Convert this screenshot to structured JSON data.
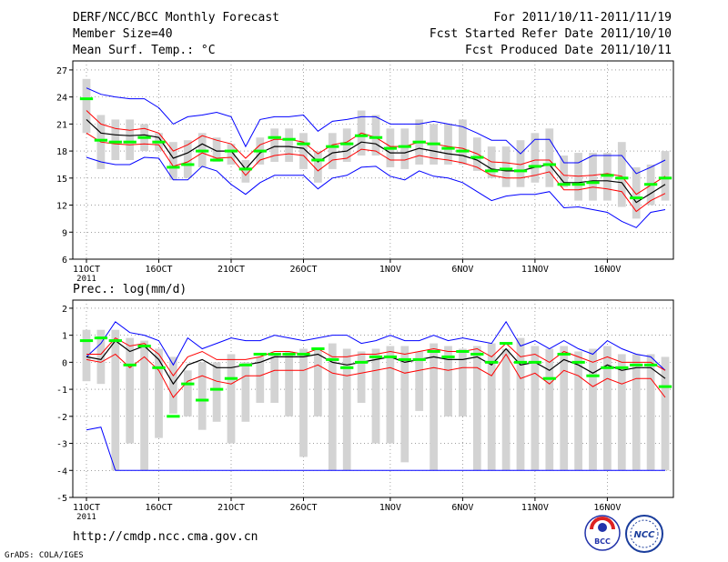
{
  "header": {
    "title": "DERF/NCC/BCC Monthly Forecast",
    "member_size": "Member Size=40",
    "variable": "Mean Surf. Temp.: °C",
    "period": "For 2011/10/11-2011/11/19",
    "started": "Fcst Started Refer Date 2011/10/10",
    "produced": "Fcst Produced Date 2011/10/11"
  },
  "footer": {
    "url": "http://cmdp.ncc.cma.gov.cn",
    "grads": "GrADS: COLA/IGES",
    "logo_bcc": "BCC",
    "logo_ncc": "NCC"
  },
  "colors": {
    "box": "#d3d3d3",
    "median": "#00ff00",
    "mean": "#000000",
    "spread": "#ff0000",
    "extreme": "#0000ff",
    "grid": "#666666"
  },
  "chart_data": [
    {
      "type": "box-plot-ensemble",
      "title": "",
      "ylabel": "Mean Surf. Temp.: °C",
      "ylim": [
        6,
        28
      ],
      "yticks": [
        6,
        9,
        12,
        15,
        18,
        21,
        24,
        27
      ],
      "days": 40,
      "xticks": [
        {
          "day": 0,
          "label": "11OCT",
          "sub": "2011"
        },
        {
          "day": 5,
          "label": "16OCT"
        },
        {
          "day": 10,
          "label": "21OCT"
        },
        {
          "day": 15,
          "label": "26OCT"
        },
        {
          "day": 21,
          "label": "1NOV"
        },
        {
          "day": 26,
          "label": "6NOV"
        },
        {
          "day": 31,
          "label": "11NOV"
        },
        {
          "day": 36,
          "label": "16NOV"
        }
      ],
      "box_low": [
        20.0,
        16.0,
        17.0,
        17.0,
        18.0,
        18.0,
        14.8,
        15.0,
        16.2,
        16.8,
        16.5,
        14.5,
        16.5,
        16.8,
        16.8,
        16.0,
        14.5,
        16.0,
        16.8,
        17.5,
        17.5,
        16.2,
        16.0,
        16.5,
        16.5,
        16.5,
        16.5,
        15.8,
        15.0,
        14.0,
        14.0,
        14.5,
        14.0,
        14.0,
        12.5,
        12.5,
        12.5,
        11.8,
        10.5,
        12.0,
        12.5
      ],
      "box_high": [
        26.0,
        22.0,
        21.5,
        21.5,
        21.0,
        20.0,
        19.0,
        19.2,
        20.0,
        19.5,
        18.8,
        17.0,
        19.5,
        20.5,
        20.5,
        20.0,
        18.0,
        20.0,
        20.5,
        22.5,
        22.0,
        20.5,
        20.5,
        21.5,
        21.0,
        21.0,
        21.5,
        19.5,
        18.5,
        18.5,
        19.2,
        20.0,
        20.5,
        17.5,
        17.8,
        17.8,
        17.8,
        19.0,
        16.2,
        16.5,
        18.0
      ],
      "median": [
        23.8,
        19.2,
        19.0,
        19.0,
        19.5,
        19.0,
        16.2,
        16.5,
        18.0,
        17.0,
        18.0,
        16.0,
        18.0,
        19.5,
        19.3,
        18.8,
        17.0,
        18.5,
        18.8,
        19.7,
        19.5,
        18.3,
        18.5,
        19.0,
        18.8,
        18.3,
        18.0,
        17.3,
        15.8,
        16.0,
        15.8,
        16.3,
        16.5,
        14.3,
        14.3,
        14.5,
        15.3,
        15.0,
        12.8,
        14.3,
        15.0
      ],
      "mean": [
        21.5,
        20.0,
        19.8,
        19.7,
        19.8,
        19.5,
        17.2,
        17.8,
        18.8,
        18.0,
        18.0,
        16.0,
        17.8,
        18.5,
        18.5,
        18.3,
        16.8,
        17.8,
        18.0,
        19.0,
        18.8,
        17.8,
        17.8,
        18.3,
        18.0,
        17.7,
        17.5,
        17.0,
        16.0,
        15.8,
        15.8,
        16.2,
        16.5,
        14.5,
        14.5,
        14.7,
        14.7,
        14.5,
        12.3,
        13.3,
        14.3
      ],
      "spread_upper": [
        22.5,
        21.0,
        20.5,
        20.3,
        20.5,
        20.0,
        18.0,
        18.7,
        19.7,
        19.2,
        18.8,
        17.2,
        18.7,
        19.3,
        19.3,
        19.0,
        17.7,
        18.7,
        19.0,
        20.0,
        19.5,
        18.5,
        18.5,
        19.0,
        18.8,
        18.5,
        18.3,
        17.7,
        16.8,
        16.7,
        16.5,
        17.0,
        17.0,
        15.3,
        15.2,
        15.3,
        15.5,
        15.2,
        13.2,
        14.2,
        15.2
      ],
      "spread_lower": [
        20.0,
        19.0,
        18.8,
        18.7,
        18.8,
        18.7,
        16.3,
        16.8,
        17.8,
        17.2,
        17.3,
        15.3,
        17.0,
        17.5,
        17.7,
        17.5,
        15.8,
        17.0,
        17.2,
        18.2,
        18.0,
        17.0,
        17.0,
        17.5,
        17.2,
        17.0,
        16.7,
        16.2,
        15.3,
        15.0,
        15.0,
        15.3,
        15.7,
        13.7,
        13.7,
        14.0,
        13.8,
        13.5,
        11.3,
        12.5,
        13.3
      ],
      "max": [
        25.0,
        24.3,
        24.0,
        23.8,
        23.8,
        22.8,
        21.0,
        21.8,
        22.0,
        22.3,
        21.8,
        18.5,
        21.5,
        21.8,
        21.8,
        22.0,
        20.2,
        21.3,
        21.5,
        21.8,
        21.8,
        21.0,
        21.0,
        21.0,
        21.3,
        21.0,
        20.7,
        20.0,
        19.2,
        19.2,
        17.7,
        19.3,
        19.3,
        16.7,
        16.7,
        17.5,
        17.5,
        17.5,
        15.5,
        16.2,
        17.0
      ],
      "min": [
        17.3,
        16.8,
        16.5,
        16.5,
        17.3,
        17.2,
        14.8,
        14.8,
        16.3,
        15.8,
        14.3,
        13.2,
        14.5,
        15.3,
        15.3,
        15.3,
        13.8,
        15.0,
        15.3,
        16.2,
        16.3,
        15.2,
        14.8,
        15.8,
        15.2,
        15.0,
        14.5,
        13.5,
        12.5,
        13.0,
        13.2,
        13.2,
        13.5,
        11.7,
        11.8,
        11.5,
        11.2,
        10.2,
        9.5,
        11.2,
        11.5
      ]
    },
    {
      "type": "box-plot-ensemble",
      "title": "",
      "ylabel": "Prec.: log(mm/d)",
      "ylim": [
        -5,
        2.3
      ],
      "yticks": [
        -5,
        -4,
        -3,
        -2,
        -1,
        0,
        1,
        2
      ],
      "days": 40,
      "xticks": [
        {
          "day": 0,
          "label": "11OCT",
          "sub": "2011"
        },
        {
          "day": 5,
          "label": "16OCT"
        },
        {
          "day": 10,
          "label": "21OCT"
        },
        {
          "day": 15,
          "label": "26OCT"
        },
        {
          "day": 21,
          "label": "1NOV"
        },
        {
          "day": 26,
          "label": "6NOV"
        },
        {
          "day": 31,
          "label": "11NOV"
        },
        {
          "day": 36,
          "label": "16NOV"
        }
      ],
      "box_low": [
        -0.7,
        -0.8,
        -4.0,
        -3.0,
        -4.0,
        -2.8,
        -1.9,
        -2.0,
        -2.5,
        -2.2,
        -3.0,
        -2.2,
        -1.5,
        -1.5,
        -2.0,
        -3.5,
        -2.0,
        -4.0,
        -4.0,
        -1.5,
        -3.0,
        -3.0,
        -3.7,
        -1.8,
        -4.0,
        -2.0,
        -2.0,
        -4.0,
        -4.0,
        -4.0,
        -4.0,
        -4.0,
        -4.0,
        -4.0,
        -4.0,
        -4.0,
        -4.0,
        -4.0,
        -4.0,
        -4.0,
        -4.0
      ],
      "box_high": [
        1.2,
        1.2,
        1.2,
        0.9,
        0.8,
        0.5,
        0.2,
        -0.3,
        0.0,
        0.0,
        0.3,
        0.0,
        0.2,
        0.3,
        0.4,
        0.5,
        0.5,
        0.7,
        0.5,
        0.4,
        0.5,
        0.6,
        0.6,
        0.4,
        0.7,
        0.6,
        0.5,
        0.6,
        0.7,
        0.5,
        0.9,
        0.6,
        0.5,
        0.6,
        0.4,
        0.5,
        0.6,
        0.3,
        0.3,
        0.3,
        0.2
      ],
      "median": [
        0.8,
        0.9,
        0.8,
        -0.1,
        0.6,
        -0.2,
        -2.0,
        -0.8,
        -1.4,
        -1.0,
        -0.6,
        -0.1,
        0.3,
        0.3,
        0.3,
        0.3,
        0.5,
        0.1,
        -0.2,
        0.0,
        0.2,
        0.2,
        0.1,
        0.1,
        0.4,
        0.2,
        0.4,
        0.3,
        0.0,
        0.7,
        0.0,
        0.0,
        -0.6,
        0.3,
        0.0,
        -0.5,
        -0.2,
        -0.2,
        -0.1,
        -0.1,
        -0.9
      ],
      "mean": [
        0.2,
        0.1,
        0.8,
        0.4,
        0.6,
        0.1,
        -0.8,
        -0.1,
        0.1,
        -0.2,
        -0.2,
        -0.1,
        0.0,
        0.2,
        0.2,
        0.2,
        0.3,
        0.0,
        -0.1,
        0.0,
        0.1,
        0.2,
        0.0,
        0.1,
        0.2,
        0.1,
        0.1,
        0.2,
        -0.1,
        0.5,
        -0.1,
        0.0,
        -0.3,
        0.1,
        -0.1,
        -0.4,
        -0.1,
        -0.3,
        -0.2,
        -0.2,
        -0.6
      ],
      "spread_upper": [
        0.3,
        0.3,
        0.9,
        0.6,
        0.7,
        0.3,
        -0.5,
        0.2,
        0.4,
        0.1,
        0.1,
        0.1,
        0.2,
        0.4,
        0.4,
        0.3,
        0.5,
        0.2,
        0.2,
        0.3,
        0.3,
        0.4,
        0.3,
        0.4,
        0.5,
        0.4,
        0.4,
        0.5,
        0.2,
        0.7,
        0.2,
        0.3,
        0.0,
        0.4,
        0.2,
        0.0,
        0.2,
        0.0,
        0.0,
        0.0,
        -0.3
      ],
      "spread_lower": [
        0.1,
        0.0,
        0.3,
        -0.2,
        0.2,
        -0.3,
        -1.3,
        -0.7,
        -0.5,
        -0.7,
        -0.8,
        -0.5,
        -0.5,
        -0.3,
        -0.3,
        -0.3,
        -0.1,
        -0.4,
        -0.5,
        -0.4,
        -0.3,
        -0.2,
        -0.4,
        -0.3,
        -0.2,
        -0.3,
        -0.2,
        -0.2,
        -0.5,
        0.3,
        -0.6,
        -0.4,
        -0.8,
        -0.3,
        -0.5,
        -0.9,
        -0.6,
        -0.8,
        -0.6,
        -0.6,
        -1.3
      ],
      "max": [
        0.2,
        0.7,
        1.5,
        1.1,
        1.0,
        0.8,
        -0.1,
        0.9,
        0.5,
        0.7,
        0.9,
        0.8,
        0.8,
        1.0,
        0.9,
        0.8,
        0.9,
        1.0,
        1.0,
        0.7,
        0.8,
        1.0,
        0.8,
        0.8,
        1.0,
        0.8,
        0.9,
        0.8,
        0.7,
        1.5,
        0.6,
        0.8,
        0.5,
        0.8,
        0.5,
        0.3,
        0.8,
        0.5,
        0.3,
        0.2,
        -0.3
      ],
      "min": [
        -2.5,
        -2.4,
        -4.0,
        -4.0,
        -4.0,
        -4.0,
        -4.0,
        -4.0,
        -4.0,
        -4.0,
        -4.0,
        -4.0,
        -4.0,
        -4.0,
        -4.0,
        -4.0,
        -4.0,
        -4.0,
        -4.0,
        -4.0,
        -4.0,
        -4.0,
        -4.0,
        -4.0,
        -4.0,
        -4.0,
        -4.0,
        -4.0,
        -4.0,
        -4.0,
        -4.0,
        -4.0,
        -4.0,
        -4.0,
        -4.0,
        -4.0,
        -4.0,
        -4.0,
        -4.0,
        -4.0,
        -4.0
      ]
    }
  ]
}
